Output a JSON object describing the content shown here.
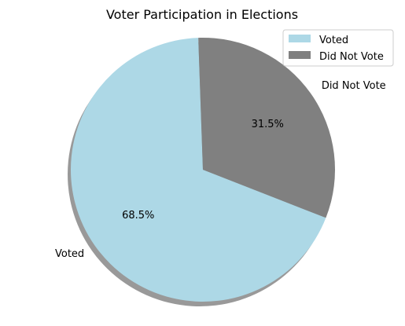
{
  "chart_data": {
    "type": "pie",
    "title": "Voter Participation in Elections",
    "categories": [
      "Voted",
      "Did Not Vote"
    ],
    "values": [
      68.5,
      31.5
    ],
    "percent_labels": [
      "68.5%",
      "31.5%"
    ],
    "colors": [
      "#add8e6",
      "#808080"
    ],
    "shadow": true,
    "legend": {
      "placement": "top-right",
      "entries": [
        "Voted",
        "Did Not Vote"
      ]
    }
  }
}
